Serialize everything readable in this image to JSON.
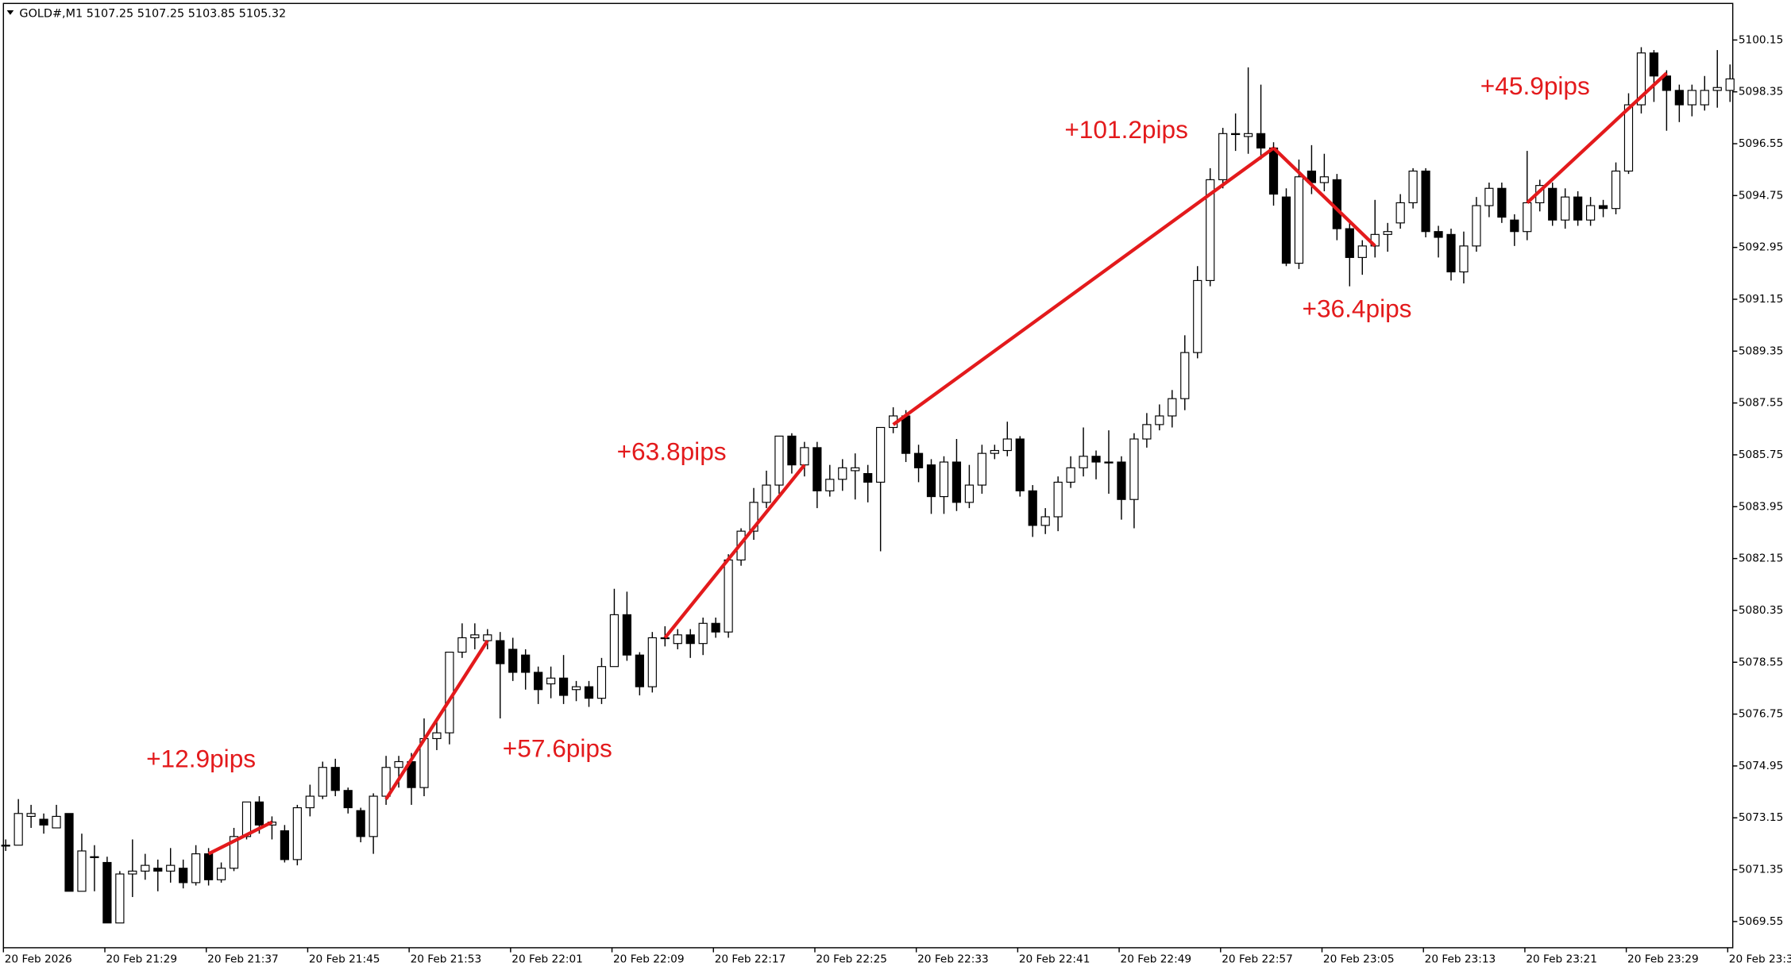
{
  "chart_data": {
    "type": "candlestick",
    "title": "GOLD#,M1  5107.25 5107.25 5103.85 5105.32",
    "categories": [
      "20 Feb 2026",
      null,
      null,
      null,
      null,
      null,
      null,
      null,
      "20 Feb 21:29",
      null,
      null,
      null,
      null,
      null,
      null,
      null,
      "20 Feb 21:37",
      null,
      null,
      null,
      null,
      null,
      null,
      null,
      "20 Feb 21:45",
      null,
      null,
      null,
      null,
      null,
      null,
      null,
      "20 Feb 21:53",
      null,
      null,
      null,
      null,
      null,
      null,
      null,
      "20 Feb 22:01",
      null,
      null,
      null,
      null,
      null,
      null,
      null,
      "20 Feb 22:09",
      null,
      null,
      null,
      null,
      null,
      null,
      null,
      "20 Feb 22:17",
      null,
      null,
      null,
      null,
      null,
      null,
      null,
      "20 Feb 22:25",
      null,
      null,
      null,
      null,
      null,
      null,
      null,
      "20 Feb 22:33",
      null,
      null,
      null,
      null,
      null,
      null,
      null,
      "20 Feb 22:41",
      null,
      null,
      null,
      null,
      null,
      null,
      null,
      "20 Feb 22:49",
      null,
      null,
      null,
      null,
      null,
      null,
      null,
      "20 Feb 22:57",
      null,
      null,
      null,
      null,
      null,
      null,
      null,
      "20 Feb 23:05",
      null,
      null,
      null,
      null,
      null,
      null,
      null,
      "20 Feb 23:13",
      null,
      null,
      null,
      null,
      null,
      null,
      null,
      "20 Feb 23:21",
      null,
      null,
      null,
      null,
      null,
      null,
      null,
      "20 Feb 23:29",
      null,
      null,
      null,
      null,
      null,
      null,
      null,
      "20 Feb 23:3"
    ],
    "open": [
      5072.2,
      5072.2,
      5073.2,
      5073.1,
      5072.8,
      5073.3,
      5070.6,
      5071.8,
      5071.6,
      5069.5,
      5071.2,
      5071.3,
      5071.4,
      5071.3,
      5071.4,
      5070.9,
      5071.9,
      5071.0,
      5071.4,
      5072.5,
      5073.7,
      5072.9,
      5072.7,
      5071.7,
      5073.5,
      5073.9,
      5074.9,
      5074.1,
      5073.4,
      5072.5,
      5073.9,
      5074.9,
      5075.1,
      5074.2,
      5075.9,
      5076.1,
      5078.9,
      5079.4,
      5079.3,
      5079.3,
      5079.0,
      5078.8,
      5078.2,
      5077.8,
      5078.0,
      5077.6,
      5077.7,
      5077.3,
      5078.4,
      5080.2,
      5078.8,
      5077.7,
      5079.4,
      5079.2,
      5079.5,
      5079.2,
      5079.9,
      5079.6,
      5082.1,
      5083.1,
      5084.1,
      5084.7,
      5086.4,
      5085.4,
      5086.0,
      5084.5,
      5084.9,
      5085.2,
      5085.1,
      5084.8,
      5086.7,
      5087.1,
      5085.8,
      5085.4,
      5084.3,
      5085.5,
      5084.1,
      5084.7,
      5085.8,
      5085.9,
      5086.3,
      5084.5,
      5083.3,
      5083.6,
      5084.8,
      5085.3,
      5085.7,
      5085.5,
      5085.5,
      5084.2,
      5086.3,
      5086.8,
      5087.1,
      5087.7,
      5089.3,
      5091.8,
      5095.3,
      5096.9,
      5096.8,
      5096.9,
      5096.4,
      5094.7,
      5092.4,
      5095.6,
      5095.2,
      5095.3,
      5093.6,
      5092.6,
      5093.0,
      5093.4,
      5093.8,
      5094.5,
      5095.6,
      5093.5,
      5093.4,
      5092.1,
      5093.0,
      5094.4,
      5095.0,
      5093.9,
      5093.5,
      5094.5,
      5095.0,
      5093.9,
      5094.7,
      5093.9,
      5094.4,
      5094.3,
      5095.6,
      5097.9,
      5099.7,
      5098.9,
      5098.4,
      5097.9,
      5097.9,
      5098.4,
      5098.4
    ],
    "high": [
      5072.4,
      5073.8,
      5073.6,
      5073.3,
      5073.6,
      5073.3,
      5072.6,
      5072.2,
      5071.8,
      5071.3,
      5072.4,
      5071.9,
      5071.7,
      5072.1,
      5071.7,
      5072.2,
      5072.1,
      5071.6,
      5072.8,
      5073.7,
      5073.9,
      5073.2,
      5072.9,
      5073.6,
      5074.3,
      5075.1,
      5075.2,
      5074.2,
      5073.5,
      5074.0,
      5075.3,
      5075.3,
      5075.4,
      5076.6,
      5076.5,
      5078.9,
      5079.9,
      5079.9,
      5079.7,
      5079.6,
      5079.4,
      5079.0,
      5078.4,
      5078.4,
      5078.8,
      5077.9,
      5077.9,
      5078.7,
      5081.1,
      5081.0,
      5078.9,
      5079.6,
      5079.8,
      5079.7,
      5079.7,
      5080.1,
      5080.1,
      5082.3,
      5083.2,
      5084.6,
      5085.2,
      5086.4,
      5086.5,
      5086.2,
      5086.2,
      5085.4,
      5085.6,
      5085.8,
      5085.4,
      5086.7,
      5087.4,
      5087.3,
      5086.1,
      5085.6,
      5085.7,
      5086.3,
      5085.4,
      5086.1,
      5086.1,
      5086.9,
      5086.4,
      5084.7,
      5083.9,
      5085.0,
      5085.7,
      5086.7,
      5085.9,
      5086.6,
      5085.7,
      5086.5,
      5087.2,
      5087.5,
      5088.0,
      5089.9,
      5092.3,
      5095.7,
      5097.1,
      5097.6,
      5099.2,
      5098.6,
      5096.6,
      5095.0,
      5096.0,
      5096.5,
      5096.2,
      5095.5,
      5093.8,
      5093.2,
      5094.6,
      5093.8,
      5094.8,
      5095.7,
      5095.7,
      5093.7,
      5093.6,
      5093.5,
      5094.7,
      5095.2,
      5095.2,
      5094.1,
      5096.3,
      5095.3,
      5095.2,
      5095.0,
      5094.9,
      5094.7,
      5094.6,
      5095.9,
      5098.3,
      5099.9,
      5099.8,
      5099.1,
      5098.6,
      5098.6,
      5098.9,
      5099.8,
      5099.3
    ],
    "low": [
      5072.0,
      5072.2,
      5072.8,
      5072.6,
      5072.8,
      5070.6,
      5070.6,
      5070.6,
      5069.5,
      5069.5,
      5070.4,
      5071.0,
      5070.6,
      5070.9,
      5070.7,
      5070.8,
      5070.8,
      5070.9,
      5071.3,
      5072.4,
      5072.6,
      5072.4,
      5071.6,
      5071.5,
      5073.2,
      5073.8,
      5073.9,
      5073.3,
      5072.3,
      5071.9,
      5073.6,
      5074.2,
      5073.6,
      5073.9,
      5075.5,
      5075.7,
      5078.7,
      5079.0,
      5079.0,
      5076.6,
      5077.9,
      5077.6,
      5077.1,
      5077.3,
      5077.1,
      5077.2,
      5077.0,
      5077.1,
      5078.4,
      5078.6,
      5077.4,
      5077.5,
      5079.1,
      5079.0,
      5078.7,
      5078.8,
      5079.4,
      5079.4,
      5081.9,
      5082.8,
      5083.9,
      5084.4,
      5085.1,
      5085.0,
      5083.9,
      5084.3,
      5084.5,
      5084.2,
      5084.1,
      5082.4,
      5086.5,
      5085.5,
      5084.8,
      5083.7,
      5083.7,
      5083.8,
      5083.9,
      5084.4,
      5085.6,
      5085.7,
      5084.3,
      5082.9,
      5083.0,
      5083.1,
      5084.6,
      5085.0,
      5084.9,
      5084.4,
      5083.5,
      5083.2,
      5086.0,
      5086.6,
      5086.7,
      5087.3,
      5089.1,
      5091.6,
      5095.0,
      5096.3,
      5096.2,
      5096.0,
      5094.4,
      5092.3,
      5092.2,
      5094.8,
      5094.9,
      5093.2,
      5091.6,
      5092.0,
      5092.6,
      5092.8,
      5093.6,
      5094.3,
      5093.3,
      5092.6,
      5091.8,
      5091.7,
      5092.8,
      5094.0,
      5093.8,
      5093.0,
      5093.2,
      5094.2,
      5093.7,
      5093.6,
      5093.7,
      5093.7,
      5094.0,
      5094.1,
      5095.5,
      5097.6,
      5098.0,
      5097.0,
      5097.3,
      5097.5,
      5097.7,
      5097.8,
      5098.0
    ],
    "close": [
      5072.2,
      5073.3,
      5073.3,
      5072.9,
      5073.2,
      5070.6,
      5072.0,
      5071.8,
      5069.5,
      5071.2,
      5071.3,
      5071.5,
      5071.3,
      5071.5,
      5070.9,
      5071.9,
      5071.0,
      5071.4,
      5072.5,
      5073.7,
      5072.9,
      5073.0,
      5071.7,
      5073.5,
      5073.9,
      5074.9,
      5074.1,
      5073.5,
      5072.5,
      5073.9,
      5074.9,
      5075.1,
      5074.2,
      5075.9,
      5076.1,
      5078.9,
      5079.4,
      5079.5,
      5079.5,
      5078.5,
      5078.2,
      5078.2,
      5077.6,
      5078.0,
      5077.4,
      5077.7,
      5077.3,
      5078.4,
      5080.2,
      5078.8,
      5077.7,
      5079.4,
      5079.4,
      5079.5,
      5079.2,
      5079.9,
      5079.6,
      5082.1,
      5083.1,
      5084.1,
      5084.7,
      5086.4,
      5085.4,
      5086.0,
      5084.5,
      5084.9,
      5085.3,
      5085.3,
      5084.8,
      5086.7,
      5087.1,
      5085.8,
      5085.3,
      5084.3,
      5085.5,
      5084.1,
      5084.7,
      5085.8,
      5085.9,
      5086.3,
      5084.5,
      5083.3,
      5083.6,
      5084.8,
      5085.3,
      5085.7,
      5085.5,
      5085.5,
      5084.2,
      5086.3,
      5086.8,
      5087.1,
      5087.7,
      5089.3,
      5091.8,
      5095.3,
      5096.9,
      5096.9,
      5096.9,
      5096.4,
      5094.8,
      5092.4,
      5095.4,
      5095.2,
      5095.4,
      5093.6,
      5092.6,
      5093.0,
      5093.4,
      5093.5,
      5094.5,
      5095.6,
      5093.5,
      5093.3,
      5092.1,
      5093.0,
      5094.4,
      5095.0,
      5094.0,
      5093.5,
      5094.5,
      5095.1,
      5093.9,
      5094.7,
      5093.9,
      5094.4,
      5094.3,
      5095.6,
      5097.9,
      5099.7,
      5098.9,
      5098.4,
      5097.9,
      5098.4,
      5098.4,
      5098.5,
      5098.8
    ],
    "up_color": "#ffffff",
    "down_color": "#000000",
    "wick_color": "#000000",
    "ylim": [
      5068.64,
      5101.34
    ],
    "yticks": [
      5100.15,
      5098.35,
      5096.55,
      5094.75,
      5092.95,
      5091.15,
      5089.35,
      5087.55,
      5085.75,
      5083.95,
      5082.15,
      5080.35,
      5078.55,
      5076.75,
      5074.95,
      5073.15,
      5071.35,
      5069.55
    ],
    "annotation_color": "#e31a1c",
    "annotations": [
      {
        "text": "+12.9pips",
        "candles": [
          16,
          21
        ],
        "prices": [
          5071.9,
          5073.0
        ]
      },
      {
        "text": "+57.6pips",
        "candles": [
          30,
          38
        ],
        "prices": [
          5073.8,
          5079.3
        ]
      },
      {
        "text": "+63.8pips",
        "candles": [
          52,
          63
        ],
        "prices": [
          5079.4,
          5085.4
        ]
      },
      {
        "text": "+101.2pips",
        "candles": [
          70,
          100
        ],
        "prices": [
          5086.8,
          5096.4
        ]
      },
      {
        "text": "+36.4pips",
        "candles": [
          100,
          108
        ],
        "prices": [
          5096.4,
          5093.0
        ]
      },
      {
        "text": "+45.9pips",
        "candles": [
          120,
          131
        ],
        "prices": [
          5094.5,
          5099.0
        ]
      }
    ]
  }
}
